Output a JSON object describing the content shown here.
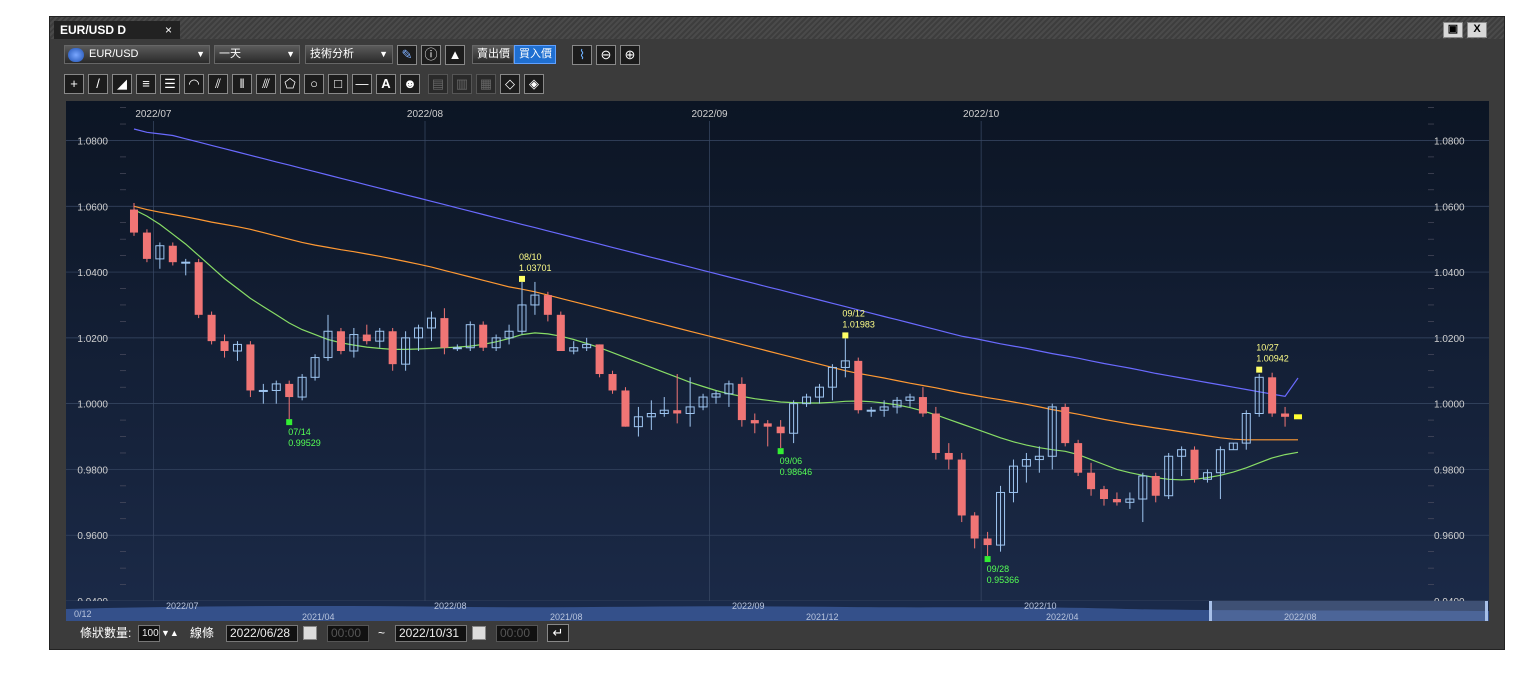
{
  "window": {
    "tab_title": "EUR/USD D",
    "tab_close": "×",
    "restore_label": "▣",
    "close_label": "X"
  },
  "toolbar": {
    "symbol": "EUR/USD",
    "period": "一天",
    "tech_label": "技術分析",
    "bid_label": "賣出價",
    "ask_label": "買入價",
    "icons": [
      "pencil-icon",
      "info-icon",
      "mountain-chart-icon",
      "bid-ask",
      "line-chart-icon",
      "zoom-out-icon",
      "zoom-in-icon"
    ]
  },
  "drawing_tools": [
    "crosshair",
    "trendline",
    "ruler",
    "horizontal-lines",
    "fibonacci-lines",
    "arc",
    "fan",
    "vertical-lines",
    "channel",
    "polygon",
    "circle",
    "rectangle",
    "hline",
    "text",
    "icon",
    "copy",
    "paste",
    "duplicate",
    "eraser",
    "eraser-all"
  ],
  "chart_data": {
    "type": "candlestick",
    "y_ticks": [
      "1.0800",
      "1.0600",
      "1.0400",
      "1.0200",
      "1.0000",
      "0.9800",
      "0.9600",
      "0.9400"
    ],
    "ylim": [
      0.94,
      1.092
    ],
    "x_labels": [
      "2022/07",
      "2022/08",
      "2022/09",
      "2022/10"
    ],
    "candles": [
      [
        1.059,
        1.061,
        1.051,
        1.052
      ],
      [
        1.052,
        1.053,
        1.043,
        1.044
      ],
      [
        1.044,
        1.049,
        1.041,
        1.048
      ],
      [
        1.048,
        1.049,
        1.042,
        1.043
      ],
      [
        1.043,
        1.044,
        1.039,
        1.043
      ],
      [
        1.043,
        1.044,
        1.026,
        1.027
      ],
      [
        1.027,
        1.028,
        1.018,
        1.019
      ],
      [
        1.019,
        1.021,
        1.014,
        1.016
      ],
      [
        1.016,
        1.019,
        1.013,
        1.018
      ],
      [
        1.018,
        1.019,
        1.002,
        1.004
      ],
      [
        1.004,
        1.006,
        1.0,
        1.004
      ],
      [
        1.004,
        1.007,
        1.0,
        1.006
      ],
      [
        1.006,
        1.007,
        0.9953,
        1.002
      ],
      [
        1.002,
        1.009,
        1.001,
        1.008
      ],
      [
        1.008,
        1.015,
        1.007,
        1.014
      ],
      [
        1.014,
        1.027,
        1.013,
        1.022
      ],
      [
        1.022,
        1.023,
        1.015,
        1.016
      ],
      [
        1.016,
        1.023,
        1.014,
        1.021
      ],
      [
        1.021,
        1.024,
        1.018,
        1.019
      ],
      [
        1.019,
        1.023,
        1.017,
        1.022
      ],
      [
        1.022,
        1.023,
        1.01,
        1.012
      ],
      [
        1.012,
        1.022,
        1.01,
        1.02
      ],
      [
        1.02,
        1.024,
        1.016,
        1.023
      ],
      [
        1.023,
        1.028,
        1.019,
        1.026
      ],
      [
        1.026,
        1.029,
        1.015,
        1.017
      ],
      [
        1.017,
        1.018,
        1.016,
        1.017
      ],
      [
        1.017,
        1.025,
        1.016,
        1.024
      ],
      [
        1.024,
        1.025,
        1.016,
        1.017
      ],
      [
        1.017,
        1.021,
        1.016,
        1.02
      ],
      [
        1.02,
        1.024,
        1.018,
        1.022
      ],
      [
        1.022,
        1.037,
        1.021,
        1.03
      ],
      [
        1.03,
        1.037,
        1.027,
        1.033
      ],
      [
        1.033,
        1.034,
        1.025,
        1.027
      ],
      [
        1.027,
        1.028,
        1.016,
        1.016
      ],
      [
        1.016,
        1.019,
        1.015,
        1.017
      ],
      [
        1.017,
        1.02,
        1.016,
        1.018
      ],
      [
        1.018,
        1.018,
        1.008,
        1.009
      ],
      [
        1.009,
        1.01,
        1.003,
        1.004
      ],
      [
        1.004,
        1.005,
        0.993,
        0.993
      ],
      [
        0.993,
        0.999,
        0.99,
        0.996
      ],
      [
        0.996,
        1.001,
        0.992,
        0.997
      ],
      [
        0.997,
        1.002,
        0.996,
        0.998
      ],
      [
        0.998,
        1.009,
        0.994,
        0.997
      ],
      [
        0.997,
        1.008,
        0.993,
        0.999
      ],
      [
        0.999,
        1.003,
        0.998,
        1.002
      ],
      [
        1.002,
        1.004,
        1.0,
        1.003
      ],
      [
        1.003,
        1.007,
        0.999,
        1.006
      ],
      [
        1.006,
        1.008,
        0.993,
        0.995
      ],
      [
        0.995,
        0.997,
        0.991,
        0.994
      ],
      [
        0.994,
        0.995,
        0.987,
        0.993
      ],
      [
        0.993,
        0.995,
        0.9865,
        0.991
      ],
      [
        0.991,
        1.001,
        0.988,
        1.0
      ],
      [
        1.0,
        1.003,
        0.999,
        1.002
      ],
      [
        1.002,
        1.006,
        1.0,
        1.005
      ],
      [
        1.005,
        1.012,
        1.001,
        1.011
      ],
      [
        1.011,
        1.0198,
        1.008,
        1.013
      ],
      [
        1.013,
        1.014,
        0.997,
        0.998
      ],
      [
        0.998,
        0.999,
        0.996,
        0.998
      ],
      [
        0.998,
        1.001,
        0.996,
        0.999
      ],
      [
        0.999,
        1.002,
        0.997,
        1.001
      ],
      [
        1.001,
        1.003,
        0.999,
        1.002
      ],
      [
        1.002,
        1.005,
        0.996,
        0.997
      ],
      [
        0.997,
        0.999,
        0.983,
        0.985
      ],
      [
        0.985,
        0.988,
        0.98,
        0.983
      ],
      [
        0.983,
        0.985,
        0.964,
        0.966
      ],
      [
        0.966,
        0.967,
        0.956,
        0.959
      ],
      [
        0.959,
        0.961,
        0.9537,
        0.957
      ],
      [
        0.957,
        0.975,
        0.955,
        0.973
      ],
      [
        0.973,
        0.983,
        0.97,
        0.981
      ],
      [
        0.981,
        0.985,
        0.976,
        0.983
      ],
      [
        0.983,
        0.987,
        0.979,
        0.984
      ],
      [
        0.984,
        1.0,
        0.98,
        0.999
      ],
      [
        0.999,
        1.0,
        0.987,
        0.988
      ],
      [
        0.988,
        0.989,
        0.978,
        0.979
      ],
      [
        0.979,
        0.982,
        0.972,
        0.974
      ],
      [
        0.974,
        0.975,
        0.969,
        0.971
      ],
      [
        0.971,
        0.973,
        0.969,
        0.97
      ],
      [
        0.97,
        0.973,
        0.968,
        0.971
      ],
      [
        0.971,
        0.979,
        0.964,
        0.978
      ],
      [
        0.978,
        0.979,
        0.97,
        0.972
      ],
      [
        0.972,
        0.985,
        0.971,
        0.984
      ],
      [
        0.984,
        0.987,
        0.978,
        0.986
      ],
      [
        0.986,
        0.987,
        0.976,
        0.977
      ],
      [
        0.977,
        0.98,
        0.976,
        0.979
      ],
      [
        0.979,
        0.987,
        0.971,
        0.986
      ],
      [
        0.986,
        0.988,
        0.986,
        0.988
      ],
      [
        0.988,
        0.998,
        0.986,
        0.997
      ],
      [
        0.997,
        1.009,
        0.996,
        1.008
      ],
      [
        1.008,
        1.0094,
        0.996,
        0.997
      ],
      [
        0.997,
        0.999,
        0.993,
        0.996
      ],
      [
        0.996,
        0.997,
        0.995,
        0.996
      ]
    ],
    "annotations": [
      {
        "date": "07/14",
        "value": "0.99529",
        "type": "low"
      },
      {
        "date": "08/10",
        "value": "1.03701",
        "type": "high"
      },
      {
        "date": "09/06",
        "value": "0.98646",
        "type": "low"
      },
      {
        "date": "09/12",
        "value": "1.01983",
        "type": "high"
      },
      {
        "date": "09/28",
        "value": "0.95366",
        "type": "low"
      },
      {
        "date": "10/27",
        "value": "1.00942",
        "type": "high"
      }
    ],
    "moving_averages": [
      {
        "color": "#6a6aff",
        "values": [
          1.0835,
          1.0825,
          1.082,
          1.0815,
          1.0805,
          1.0795,
          1.0785,
          1.0775,
          1.0765,
          1.0755,
          1.0745,
          1.0735,
          1.0725,
          1.0715,
          1.0705,
          1.0695,
          1.0685,
          1.0675,
          1.0665,
          1.0655,
          1.0645,
          1.0635,
          1.0625,
          1.0615,
          1.0605,
          1.0595,
          1.0585,
          1.0575,
          1.0565,
          1.0555,
          1.0545,
          1.0535,
          1.0525,
          1.0515,
          1.0505,
          1.0495,
          1.0485,
          1.0475,
          1.0465,
          1.0455,
          1.0445,
          1.0435,
          1.0425,
          1.0415,
          1.0405,
          1.0395,
          1.0385,
          1.0375,
          1.0365,
          1.0355,
          1.0345,
          1.0335,
          1.0325,
          1.0315,
          1.0305,
          1.0295,
          1.0285,
          1.0275,
          1.0265,
          1.0255,
          1.0245,
          1.0235,
          1.0225,
          1.0215,
          1.0205,
          1.0198,
          1.019,
          1.0182,
          1.0175,
          1.0168,
          1.016,
          1.0152,
          1.0145,
          1.0138,
          1.013,
          1.0122,
          1.0115,
          1.0108,
          1.01,
          1.0092,
          1.0085,
          1.0078,
          1.0071,
          1.0064,
          1.0057,
          1.005,
          1.0043,
          1.0036,
          1.0029,
          1.0022,
          1.0078
        ]
      },
      {
        "color": "#ff9933",
        "values": [
          1.06,
          1.059,
          1.0582,
          1.0575,
          1.0568,
          1.056,
          1.0552,
          1.0545,
          1.0538,
          1.053,
          1.052,
          1.051,
          1.05,
          1.049,
          1.0482,
          1.0475,
          1.0468,
          1.0462,
          1.0455,
          1.0448,
          1.044,
          1.0432,
          1.0424,
          1.0415,
          1.0405,
          1.0395,
          1.0385,
          1.0375,
          1.0365,
          1.0355,
          1.0348,
          1.034,
          1.033,
          1.032,
          1.031,
          1.03,
          1.029,
          1.028,
          1.027,
          1.026,
          1.025,
          1.024,
          1.023,
          1.022,
          1.021,
          1.02,
          1.019,
          1.018,
          1.017,
          1.016,
          1.015,
          1.014,
          1.013,
          1.012,
          1.011,
          1.01,
          1.0092,
          1.0085,
          1.0078,
          1.007,
          1.0062,
          1.0055,
          1.0048,
          1.004,
          1.0032,
          1.0025,
          1.0018,
          1.0012,
          1.0005,
          0.9998,
          0.999,
          0.9982,
          0.9975,
          0.9968,
          0.996,
          0.9952,
          0.9945,
          0.9938,
          0.9932,
          0.9926,
          0.992,
          0.9914,
          0.9908,
          0.9902,
          0.9896,
          0.9892,
          0.989,
          0.989,
          0.989,
          0.989,
          0.989
        ]
      },
      {
        "color": "#88dd66",
        "values": [
          1.059,
          1.057,
          1.0545,
          1.0515,
          1.0485,
          1.045,
          1.0415,
          1.038,
          1.035,
          1.032,
          1.0295,
          1.027,
          1.0245,
          1.0225,
          1.021,
          1.0195,
          1.0185,
          1.0178,
          1.0172,
          1.0168,
          1.0165,
          1.0165,
          1.0166,
          1.0168,
          1.017,
          1.0172,
          1.0175,
          1.018,
          1.0188,
          1.0198,
          1.021,
          1.0215,
          1.0212,
          1.0205,
          1.0195,
          1.0183,
          1.017,
          1.0155,
          1.014,
          1.0125,
          1.011,
          1.0095,
          1.008,
          1.0065,
          1.0052,
          1.004,
          1.003,
          1.0022,
          1.0015,
          1.001,
          1.0005,
          1.0003,
          1.0002,
          1.0002,
          1.0004,
          1.0007,
          1.0008,
          1.0006,
          1.0002,
          0.9996,
          0.9988,
          0.9978,
          0.9966,
          0.9952,
          0.9938,
          0.9924,
          0.991,
          0.9896,
          0.9884,
          0.9874,
          0.9866,
          0.986,
          0.9855,
          0.9845,
          0.983,
          0.9815,
          0.98,
          0.979,
          0.9782,
          0.9775,
          0.977,
          0.9768,
          0.977,
          0.9775,
          0.9782,
          0.9792,
          0.9805,
          0.982,
          0.9835,
          0.9845,
          0.9852
        ]
      }
    ],
    "navigator_labels": [
      "0/12",
      "2022/07",
      "2021/04",
      "2022/08",
      "2021/08",
      "2022/09",
      "2021/12",
      "2022/10",
      "2022/04",
      "2022/08"
    ]
  },
  "bottom": {
    "count_label": "條狀數量:",
    "count_value": "100",
    "line_label": "線條",
    "start_date": "2022/06/28",
    "start_time": "00:00",
    "tilde": "~",
    "end_date": "2022/10/31",
    "end_time": "00:00"
  },
  "colors": {
    "bull": "#9ec5f0",
    "bear": "#f07575",
    "background_top": "#0c1524",
    "background_bottom": "#1b2a48",
    "grid": "#3a4a66",
    "axis_text": "#d0d0d0"
  }
}
